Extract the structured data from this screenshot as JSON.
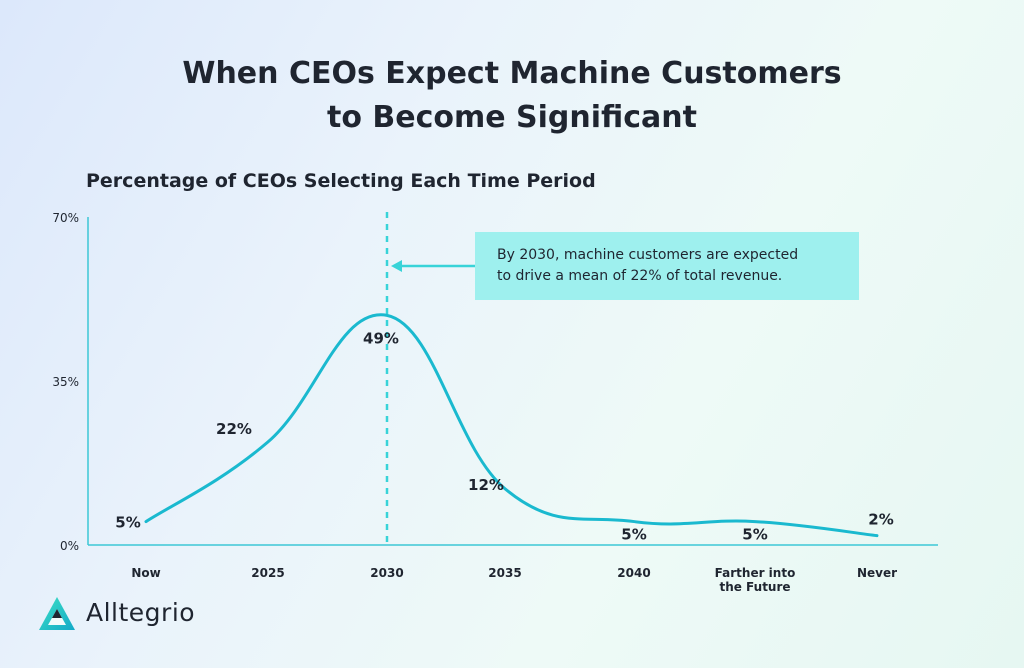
{
  "title_lines": [
    "When CEOs Expect Machine Customers",
    "to Become Significant"
  ],
  "subtitle": "Percentage of CEOs Selecting Each Time Period",
  "annotation": {
    "line1": "By 2030, machine customers are expected",
    "line2": "to drive a mean of 22% of total revenue."
  },
  "brand": {
    "name": "Alltegrio"
  },
  "colors": {
    "line": "#1ab9cf",
    "axis": "#3cc7d6",
    "callout_bg": "#9ef0ee",
    "text": "#1f2530"
  },
  "chart_data": {
    "type": "line",
    "title": "When CEOs Expect Machine Customers to Become Significant",
    "subtitle": "Percentage of CEOs Selecting Each Time Period",
    "categories": [
      "Now",
      "2025",
      "2030",
      "2035",
      "2040",
      "Farther into the Future",
      "Never"
    ],
    "category_label_lines": [
      [
        "Now"
      ],
      [
        "2025"
      ],
      [
        "2030"
      ],
      [
        "2035"
      ],
      [
        "2040"
      ],
      [
        "Farther into",
        "the Future"
      ],
      [
        "Never"
      ]
    ],
    "values": [
      5,
      22,
      49,
      12,
      5,
      5,
      2
    ],
    "labels": [
      "5%",
      "22%",
      "49%",
      "12%",
      "5%",
      "5%",
      "2%"
    ],
    "y_ticks": [
      0,
      35,
      70
    ],
    "y_tick_labels": [
      "0%",
      "35%",
      "70%"
    ],
    "ylim": [
      0,
      70
    ],
    "smooth": true,
    "grid": false,
    "highlight_category": "2030",
    "annotation": "By 2030, machine customers are expected to drive a mean of 22% of total revenue."
  }
}
